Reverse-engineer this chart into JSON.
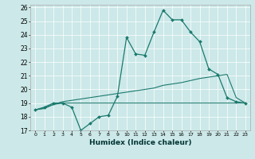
{
  "xlabel": "Humidex (Indice chaleur)",
  "ylabel": "",
  "background_color": "#cce8e8",
  "grid_color": "#ffffff",
  "line_color": "#1a7a6e",
  "xlim": [
    -0.5,
    23.5
  ],
  "ylim": [
    17,
    26.2
  ],
  "xticks": [
    0,
    1,
    2,
    3,
    4,
    5,
    6,
    7,
    8,
    9,
    10,
    11,
    12,
    13,
    14,
    15,
    16,
    17,
    18,
    19,
    20,
    21,
    22,
    23
  ],
  "yticks": [
    17,
    18,
    19,
    20,
    21,
    22,
    23,
    24,
    25,
    26
  ],
  "series1": [
    18.5,
    18.7,
    19.0,
    19.0,
    18.7,
    17.0,
    17.5,
    18.0,
    18.1,
    19.5,
    23.8,
    22.6,
    22.5,
    24.2,
    25.8,
    25.1,
    25.1,
    24.2,
    23.5,
    21.5,
    21.1,
    19.4,
    19.1,
    19.0
  ],
  "series2": [
    18.5,
    18.6,
    18.9,
    19.0,
    19.0,
    19.0,
    19.0,
    19.0,
    19.0,
    19.0,
    19.0,
    19.0,
    19.0,
    19.0,
    19.0,
    19.0,
    19.0,
    19.0,
    19.0,
    19.0,
    19.0,
    19.0,
    19.0,
    19.0
  ],
  "series3": [
    18.5,
    18.65,
    18.9,
    19.1,
    19.2,
    19.3,
    19.4,
    19.5,
    19.6,
    19.7,
    19.8,
    19.9,
    20.0,
    20.1,
    20.3,
    20.4,
    20.5,
    20.65,
    20.8,
    20.9,
    21.0,
    21.1,
    19.4,
    19.0
  ]
}
